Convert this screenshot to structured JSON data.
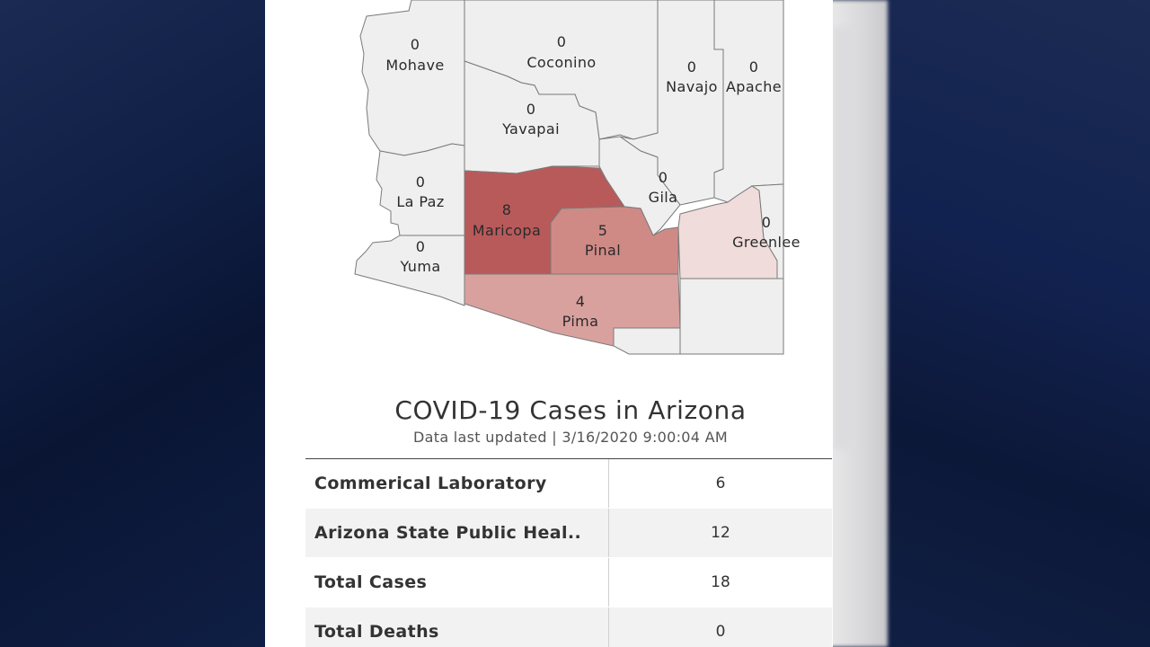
{
  "map": {
    "counties": [
      {
        "name": "Mohave",
        "cases": "0"
      },
      {
        "name": "Coconino",
        "cases": "0"
      },
      {
        "name": "Navajo",
        "cases": "0"
      },
      {
        "name": "Apache",
        "cases": "0"
      },
      {
        "name": "Yavapai",
        "cases": "0"
      },
      {
        "name": "La Paz",
        "cases": "0"
      },
      {
        "name": "Gila",
        "cases": "0"
      },
      {
        "name": "Maricopa",
        "cases": "8"
      },
      {
        "name": "Pinal",
        "cases": "5"
      },
      {
        "name": "Greenlee",
        "cases": "0"
      },
      {
        "name": "Yuma",
        "cases": "0"
      },
      {
        "name": "Pima",
        "cases": "4"
      }
    ],
    "colors": {
      "zero": "#efefef",
      "maricopa": "#b95a5a",
      "pinal": "#cf8a86",
      "pima": "#d9a19e",
      "graham": "#f0dcdb",
      "border": "#7a7a7a"
    }
  },
  "title": "COVID-19 Cases in Arizona",
  "updated": "Data last updated | 3/16/2020 9:00:04 AM",
  "rows": [
    {
      "label": "Commerical Laboratory",
      "value": "6"
    },
    {
      "label": "Arizona State Public Heal..",
      "value": "12"
    },
    {
      "label": "Total Cases",
      "value": "18"
    },
    {
      "label": "Total Deaths",
      "value": "0"
    }
  ]
}
